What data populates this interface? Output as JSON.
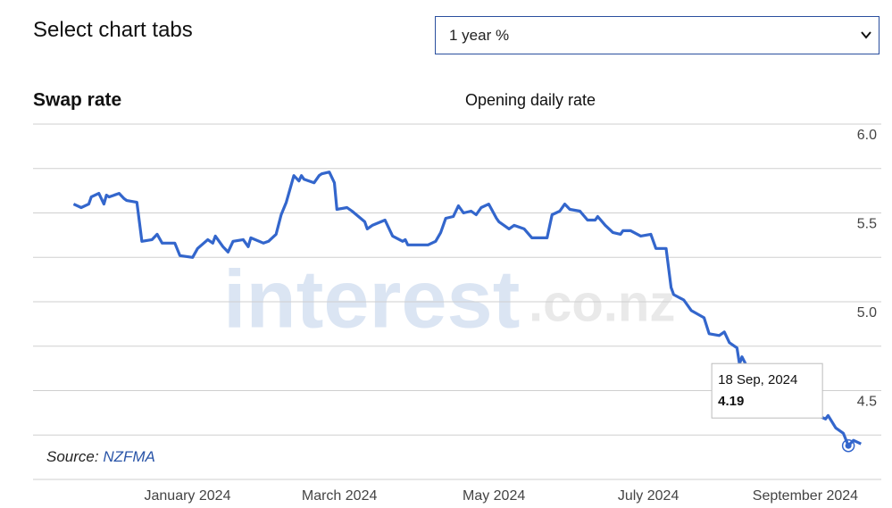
{
  "header": {
    "title": "Select chart tabs",
    "select_value": "1 year %"
  },
  "chart_data": {
    "type": "line",
    "title": "Swap rate",
    "subtitle": "Opening daily rate",
    "source_label": "Source:",
    "source_name": "NZFMA",
    "watermark_main": "interest",
    "watermark_domain": ".co.nz",
    "color": "#3366cc",
    "grid": true,
    "xlim": [
      "2023-11-01",
      "2024-10-01"
    ],
    "xticks": [
      {
        "value": "2024-01-01",
        "label": "January 2024"
      },
      {
        "value": "2024-03-01",
        "label": "March 2024"
      },
      {
        "value": "2024-05-01",
        "label": "May 2024"
      },
      {
        "value": "2024-07-01",
        "label": "July 2024"
      },
      {
        "value": "2024-09-01",
        "label": "September 2024"
      }
    ],
    "ylim": [
      4.0,
      6.0
    ],
    "yticks": [
      {
        "value": 4.5,
        "label": "4.5"
      },
      {
        "value": 5,
        "label": "5.0"
      },
      {
        "value": 5.5,
        "label": "5.5"
      },
      {
        "value": 6,
        "label": "6.0"
      }
    ],
    "minor_yticks": [
      4,
      4.25,
      4.75,
      5.25,
      5.75
    ],
    "x": [
      "2023-11-17",
      "2023-11-20",
      "2023-11-23",
      "2023-11-24",
      "2023-11-27",
      "2023-11-29",
      "2023-11-30",
      "2023-12-01",
      "2023-12-05",
      "2023-12-07",
      "2023-12-08",
      "2023-12-12",
      "2023-12-14",
      "2023-12-18",
      "2023-12-20",
      "2023-12-22",
      "2023-12-27",
      "2023-12-29",
      "2024-01-03",
      "2024-01-05",
      "2024-01-09",
      "2024-01-11",
      "2024-01-12",
      "2024-01-15",
      "2024-01-17",
      "2024-01-19",
      "2024-01-23",
      "2024-01-25",
      "2024-01-26",
      "2024-01-31",
      "2024-02-02",
      "2024-02-05",
      "2024-02-07",
      "2024-02-09",
      "2024-02-12",
      "2024-02-14",
      "2024-02-15",
      "2024-02-16",
      "2024-02-20",
      "2024-02-22",
      "2024-02-23",
      "2024-02-26",
      "2024-02-28",
      "2024-02-29",
      "2024-03-04",
      "2024-03-06",
      "2024-03-11",
      "2024-03-12",
      "2024-03-14",
      "2024-03-19",
      "2024-03-22",
      "2024-03-26",
      "2024-03-27",
      "2024-03-28",
      "2024-04-05",
      "2024-04-08",
      "2024-04-10",
      "2024-04-12",
      "2024-04-15",
      "2024-04-17",
      "2024-04-19",
      "2024-04-22",
      "2024-04-24",
      "2024-04-26",
      "2024-04-29",
      "2024-05-02",
      "2024-05-03",
      "2024-05-07",
      "2024-05-09",
      "2024-05-13",
      "2024-05-16",
      "2024-05-22",
      "2024-05-24",
      "2024-05-27",
      "2024-05-29",
      "2024-05-31",
      "2024-06-04",
      "2024-06-07",
      "2024-06-10",
      "2024-06-11",
      "2024-06-14",
      "2024-06-17",
      "2024-06-20",
      "2024-06-21",
      "2024-06-24",
      "2024-06-28",
      "2024-07-02",
      "2024-07-04",
      "2024-07-08",
      "2024-07-10",
      "2024-07-11",
      "2024-07-15",
      "2024-07-18",
      "2024-07-23",
      "2024-07-25",
      "2024-07-29",
      "2024-07-31",
      "2024-08-02",
      "2024-08-05",
      "2024-08-06",
      "2024-08-07",
      "2024-08-12",
      "2024-08-19",
      "2024-08-26",
      "2024-09-02",
      "2024-09-06",
      "2024-09-09",
      "2024-09-10",
      "2024-09-13",
      "2024-09-16",
      "2024-09-18",
      "2024-09-20",
      "2024-09-23"
    ],
    "values": [
      5.55,
      5.53,
      5.55,
      5.59,
      5.61,
      5.55,
      5.6,
      5.59,
      5.61,
      5.58,
      5.57,
      5.56,
      5.34,
      5.35,
      5.38,
      5.33,
      5.33,
      5.26,
      5.25,
      5.3,
      5.35,
      5.33,
      5.37,
      5.31,
      5.28,
      5.34,
      5.35,
      5.31,
      5.36,
      5.33,
      5.34,
      5.38,
      5.49,
      5.56,
      5.71,
      5.68,
      5.71,
      5.69,
      5.67,
      5.71,
      5.72,
      5.73,
      5.67,
      5.52,
      5.53,
      5.51,
      5.45,
      5.41,
      5.43,
      5.46,
      5.37,
      5.34,
      5.35,
      5.32,
      5.32,
      5.34,
      5.39,
      5.47,
      5.48,
      5.54,
      5.5,
      5.51,
      5.49,
      5.53,
      5.55,
      5.47,
      5.45,
      5.41,
      5.43,
      5.41,
      5.36,
      5.36,
      5.49,
      5.51,
      5.55,
      5.52,
      5.51,
      5.46,
      5.46,
      5.48,
      5.43,
      5.39,
      5.38,
      5.4,
      5.4,
      5.37,
      5.38,
      5.3,
      5.3,
      5.08,
      5.04,
      5.01,
      4.95,
      4.91,
      4.82,
      4.81,
      4.83,
      4.77,
      4.74,
      4.65,
      4.69,
      4.55,
      4.48,
      4.45,
      4.4,
      4.36,
      4.34,
      4.36,
      4.29,
      4.26,
      4.19,
      4.22,
      4.2
    ],
    "tooltip": {
      "x": "2024-09-18",
      "label": "18 Sep, 2024",
      "value": 4.19
    }
  }
}
